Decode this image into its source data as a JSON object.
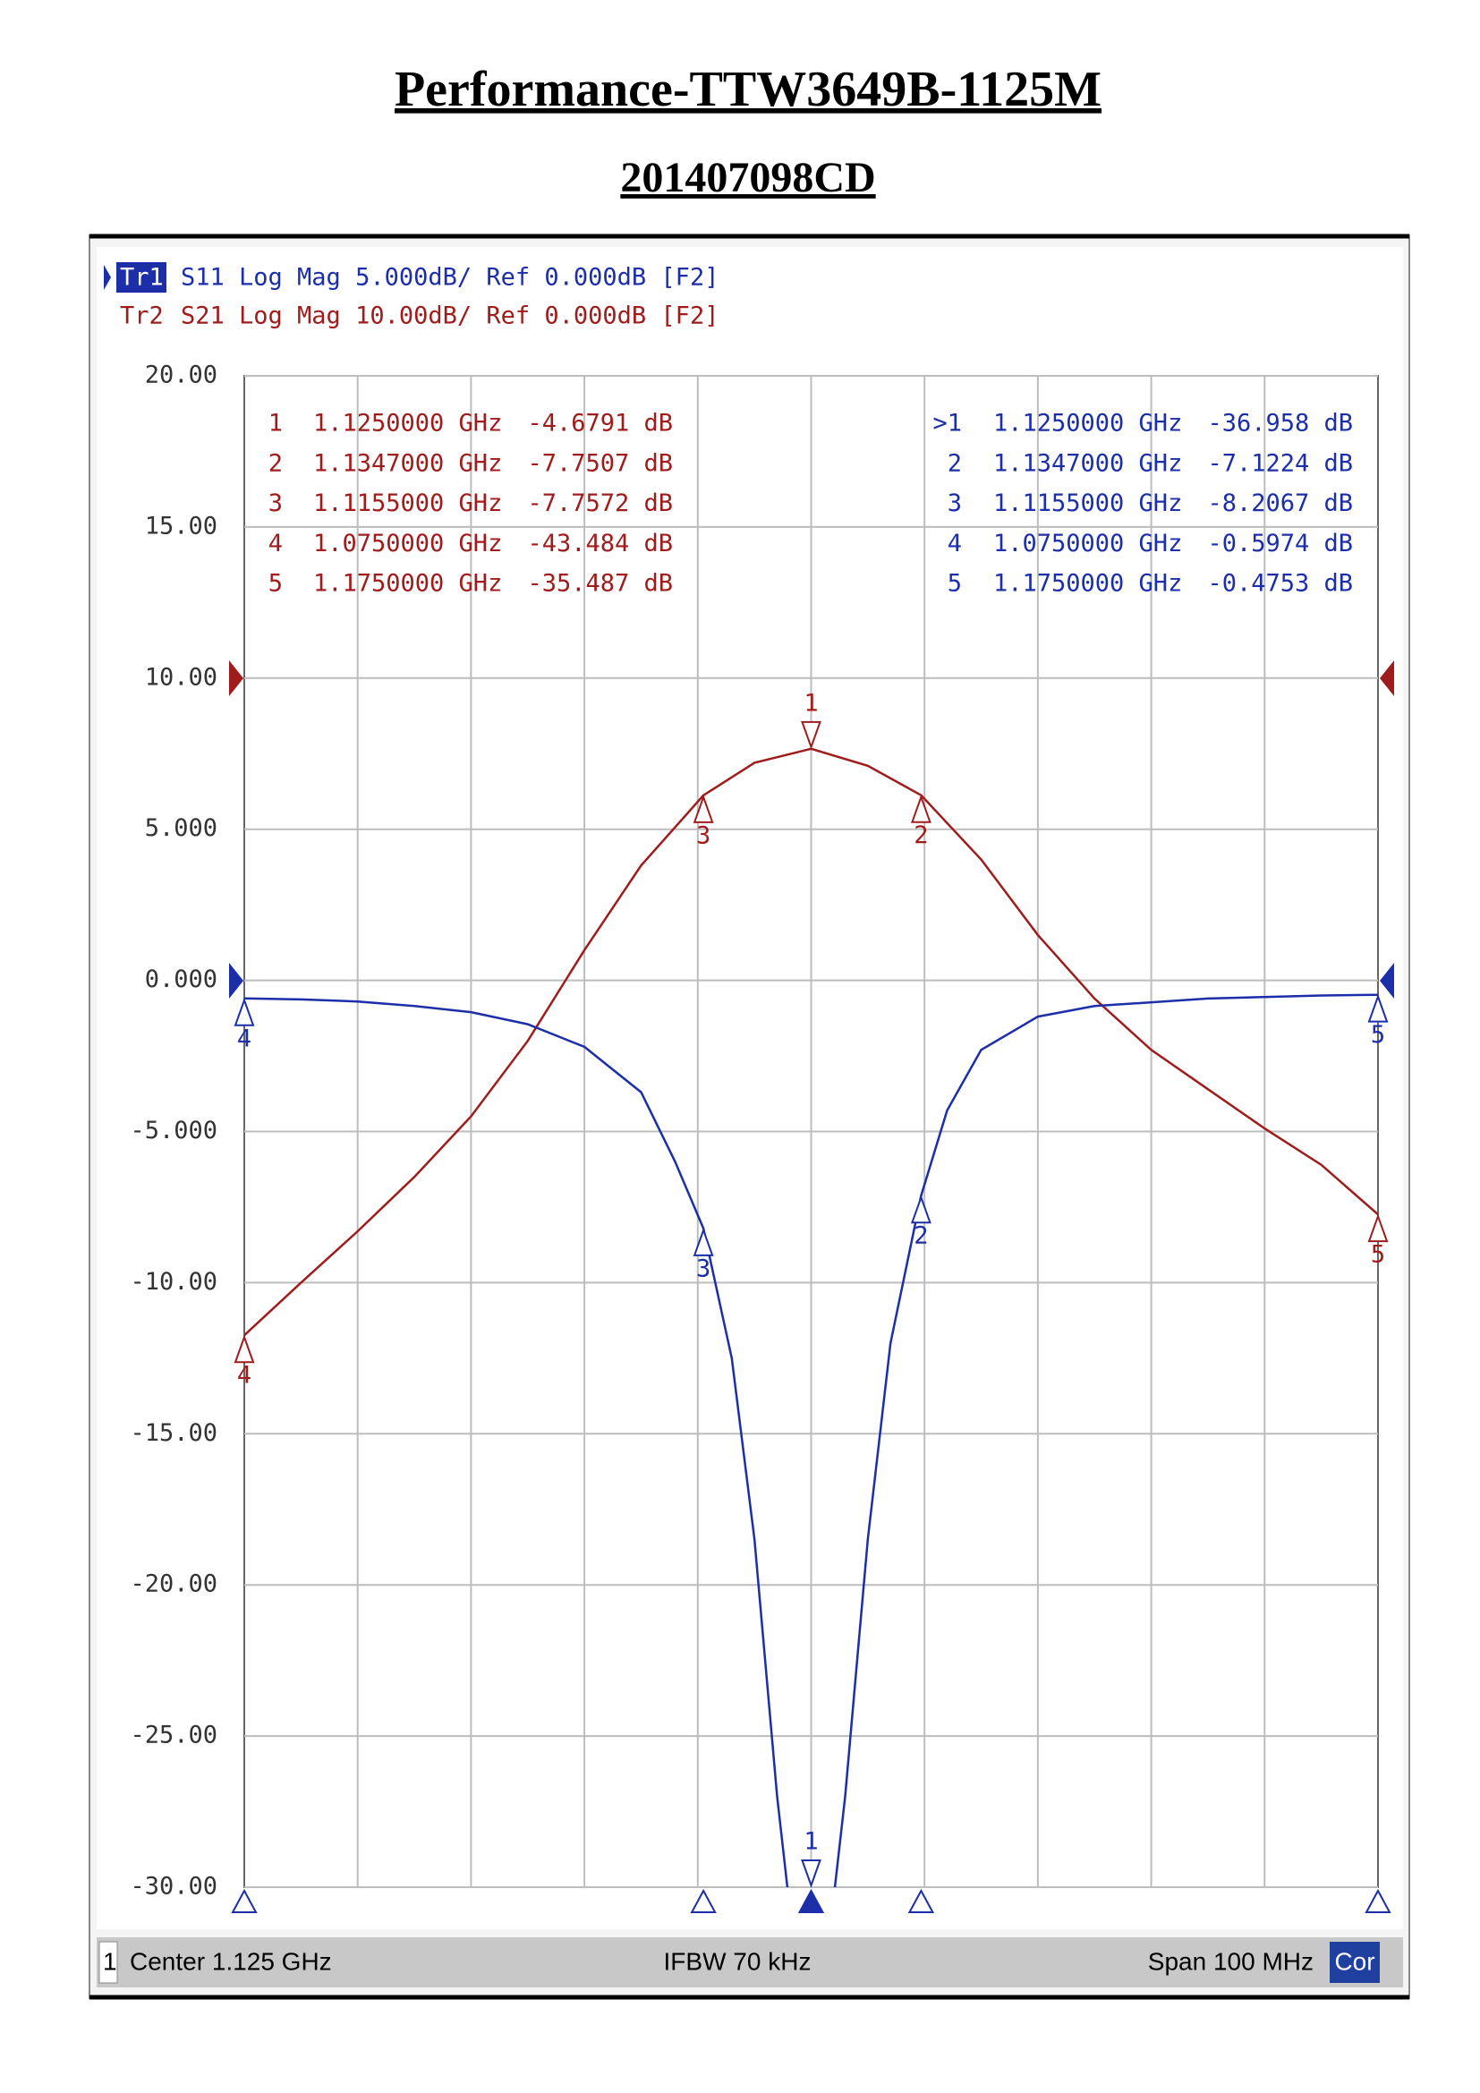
{
  "title": "Performance-TTW3649B-1125M",
  "subtitle": "201407098CD",
  "chart_data": {
    "type": "line",
    "xlim": [
      1.075,
      1.175
    ],
    "ylim": [
      -30,
      20
    ],
    "y2lim": [
      -80,
      20
    ],
    "grid": true,
    "yticks": [
      {
        "value": 20,
        "label": "20.00"
      },
      {
        "value": 15,
        "label": "15.00"
      },
      {
        "value": 10,
        "label": "10.00"
      },
      {
        "value": 5,
        "label": "5.000"
      },
      {
        "value": 0,
        "label": "0.000"
      },
      {
        "value": -5,
        "label": "-5.000"
      },
      {
        "value": -10,
        "label": "-10.00"
      },
      {
        "value": -15,
        "label": "-15.00"
      },
      {
        "value": -20,
        "label": "-20.00"
      },
      {
        "value": -25,
        "label": "-25.00"
      },
      {
        "value": -30,
        "label": "-30.00"
      }
    ],
    "series": [
      {
        "name": "Tr1",
        "description": "S11 Log Mag 5.000dB/ Ref 0.000dB [F2]",
        "color": "#1c2ea8",
        "x": [
          1.075,
          1.08,
          1.085,
          1.09,
          1.095,
          1.1,
          1.105,
          1.11,
          1.113,
          1.1155,
          1.118,
          1.12,
          1.122,
          1.125,
          1.128,
          1.13,
          1.132,
          1.1347,
          1.137,
          1.14,
          1.145,
          1.15,
          1.16,
          1.17,
          1.175
        ],
        "values": [
          -0.5974,
          -0.63,
          -0.7,
          -0.85,
          -1.05,
          -1.45,
          -2.2,
          -3.7,
          -6.0,
          -8.2067,
          -12.5,
          -18.5,
          -27,
          -36.958,
          -27,
          -18.5,
          -12,
          -7.1224,
          -4.3,
          -2.3,
          -1.2,
          -0.85,
          -0.6,
          -0.5,
          -0.4753
        ],
        "markers": [
          {
            "label": "1",
            "table_label": ">1",
            "x": {
              "value": 1.125,
              "label": "1.1250000 GHz"
            },
            "value": -36.958,
            "value_label": "-36.958 dB"
          },
          {
            "label": "2",
            "x": {
              "value": 1.1347,
              "label": "1.1347000 GHz"
            },
            "value": -7.1224,
            "value_label": "-7.1224 dB"
          },
          {
            "label": "3",
            "x": {
              "value": 1.1155,
              "label": "1.1155000 GHz"
            },
            "value": -8.2067,
            "value_label": "-8.2067 dB"
          },
          {
            "label": "4",
            "x": {
              "value": 1.075,
              "label": "1.0750000 GHz"
            },
            "value": -0.5974,
            "value_label": "-0.5974 dB"
          },
          {
            "label": "5",
            "x": {
              "value": 1.175,
              "label": "1.1750000 GHz"
            },
            "value": -0.4753,
            "value_label": "-0.4753 dB"
          }
        ]
      },
      {
        "name": "Tr2",
        "description": "S21 Log Mag 10.00dB/ Ref 0.000dB [F2]",
        "color": "#a01c1c",
        "axis": "y2",
        "x": [
          1.075,
          1.08,
          1.085,
          1.09,
          1.095,
          1.1,
          1.105,
          1.11,
          1.1155,
          1.12,
          1.125,
          1.13,
          1.1347,
          1.14,
          1.145,
          1.15,
          1.155,
          1.16,
          1.165,
          1.17,
          1.175
        ],
        "values": [
          -43.484,
          -40,
          -36.6,
          -33,
          -29,
          -24,
          -18,
          -12.4,
          -7.7572,
          -5.6,
          -4.6791,
          -5.8,
          -7.7507,
          -12,
          -17,
          -21.2,
          -24.6,
          -27.2,
          -29.8,
          -32.2,
          -35.487
        ],
        "markers": [
          {
            "label": "1",
            "x": {
              "value": 1.125,
              "label": "1.1250000 GHz"
            },
            "value": -4.6791,
            "value_label": "-4.6791 dB"
          },
          {
            "label": "2",
            "x": {
              "value": 1.1347,
              "label": "1.1347000 GHz"
            },
            "value": -7.7507,
            "value_label": "-7.7507 dB"
          },
          {
            "label": "3",
            "x": {
              "value": 1.1155,
              "label": "1.1155000 GHz"
            },
            "value": -7.7572,
            "value_label": "-7.7572 dB"
          },
          {
            "label": "4",
            "x": {
              "value": 1.075,
              "label": "1.0750000 GHz"
            },
            "value": -43.484,
            "value_label": "-43.484 dB"
          },
          {
            "label": "5",
            "x": {
              "value": 1.175,
              "label": "1.1750000 GHz"
            },
            "value": -35.487,
            "value_label": "-35.487 dB"
          }
        ]
      }
    ],
    "footer": {
      "channel": "1",
      "center": "Center 1.125 GHz",
      "ifbw": "IFBW 70 kHz",
      "span": "Span 100 MHz",
      "correction": "Cor"
    }
  }
}
